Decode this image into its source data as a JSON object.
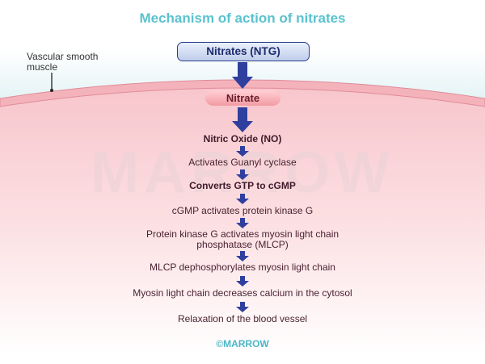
{
  "title": "Mechanism of action of nitrates",
  "vascular_label": "Vascular smooth muscle",
  "top_box": "Nitrates (NTG)",
  "membrane_label": "Nitrate",
  "steps": [
    "Nitric Oxide (NO)",
    "Activates Guanyl cyclase",
    "Converts GTP to cGMP",
    "cGMP activates protein kinase G",
    "Protein kinase G activates myosin light chain phosphatase (MLCP)",
    "MLCP dephosphorylates myosin light chain",
    "Myosin light chain decreases calcium in the cytosol",
    "Relaxation of the blood vessel"
  ],
  "watermark": "MARROW",
  "footer": "©MARROW",
  "colors": {
    "title": "#5bc2cf",
    "arrow": "#2f3f9e",
    "box_border": "#2c3f8f",
    "membrane": "#f4b3bb",
    "cell_fill": "#fbd6d9",
    "text": "#4a2232"
  }
}
